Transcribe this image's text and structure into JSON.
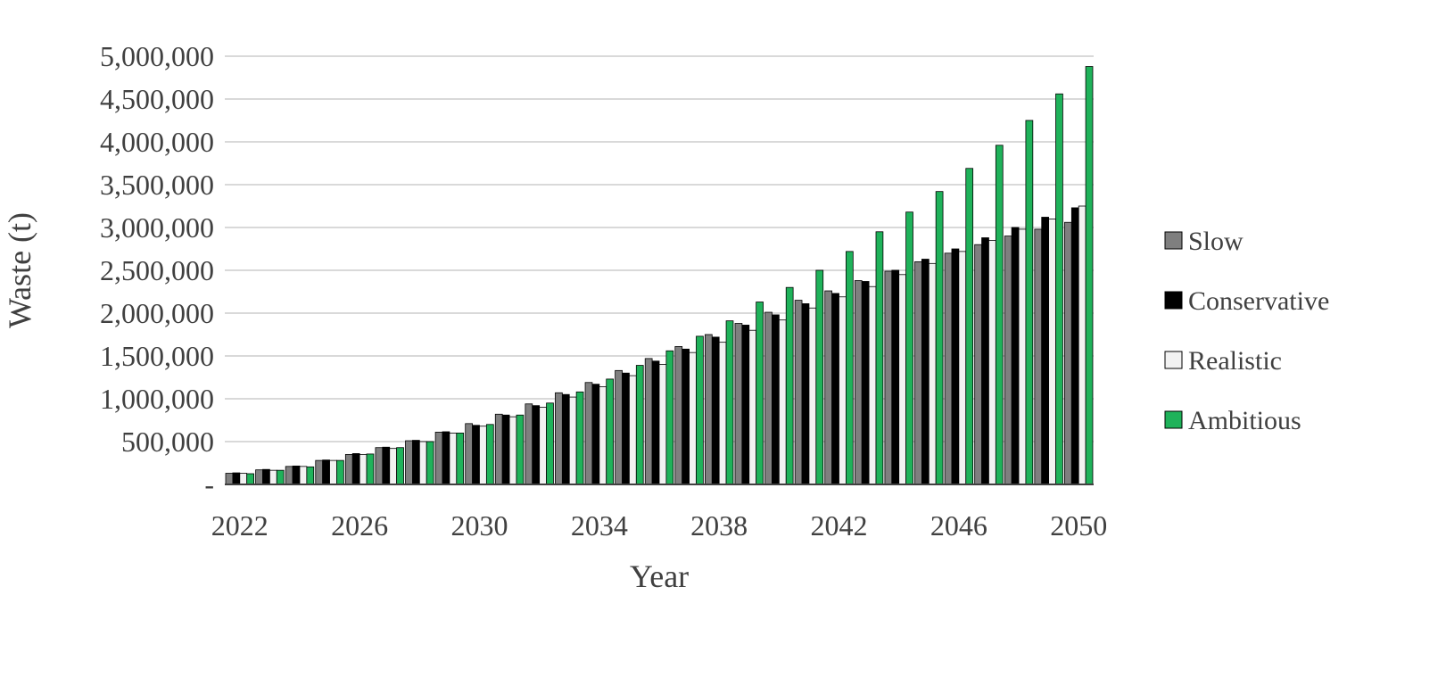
{
  "chart_data": {
    "type": "bar",
    "xlabel": "Year",
    "ylabel": "Waste (t)",
    "ylim": [
      0,
      5000000
    ],
    "yticks": [
      {
        "value": 0,
        "label": "-"
      },
      {
        "value": 500000,
        "label": "500,000"
      },
      {
        "value": 1000000,
        "label": "1,000,000"
      },
      {
        "value": 1500000,
        "label": "1,500,000"
      },
      {
        "value": 2000000,
        "label": "2,000,000"
      },
      {
        "value": 2500000,
        "label": "2,500,000"
      },
      {
        "value": 3000000,
        "label": "3,000,000"
      },
      {
        "value": 3500000,
        "label": "3,500,000"
      },
      {
        "value": 4000000,
        "label": "4,000,000"
      },
      {
        "value": 4500000,
        "label": "4,500,000"
      },
      {
        "value": 5000000,
        "label": "5,000,000"
      }
    ],
    "categories": [
      "2022",
      "2023",
      "2024",
      "2025",
      "2026",
      "2027",
      "2028",
      "2029",
      "2030",
      "2031",
      "2032",
      "2033",
      "2034",
      "2035",
      "2036",
      "2037",
      "2038",
      "2039",
      "2040",
      "2041",
      "2042",
      "2043",
      "2044",
      "2045",
      "2046",
      "2047",
      "2048",
      "2049",
      "2050"
    ],
    "xtick_labels": [
      "2022",
      "2026",
      "2030",
      "2034",
      "2038",
      "2042",
      "2046",
      "2050"
    ],
    "grid": true,
    "legend_position": "right",
    "series": [
      {
        "name": "Slow",
        "color": "#7f7f7f",
        "values": [
          130000,
          170000,
          210000,
          280000,
          350000,
          430000,
          510000,
          610000,
          710000,
          820000,
          940000,
          1070000,
          1190000,
          1330000,
          1470000,
          1610000,
          1750000,
          1880000,
          2010000,
          2150000,
          2260000,
          2380000,
          2490000,
          2600000,
          2700000,
          2800000,
          2900000,
          2980000,
          3060000
        ]
      },
      {
        "name": "Conservative",
        "color": "#000000",
        "values": [
          135000,
          175000,
          215000,
          285000,
          360000,
          435000,
          515000,
          615000,
          690000,
          810000,
          920000,
          1050000,
          1170000,
          1300000,
          1440000,
          1580000,
          1720000,
          1860000,
          1980000,
          2110000,
          2230000,
          2370000,
          2500000,
          2630000,
          2750000,
          2880000,
          3000000,
          3120000,
          3230000
        ]
      },
      {
        "name": "Realistic",
        "color": "#f2f2f2",
        "values": [
          130000,
          165000,
          210000,
          280000,
          350000,
          420000,
          500000,
          600000,
          680000,
          790000,
          900000,
          1020000,
          1140000,
          1270000,
          1400000,
          1540000,
          1660000,
          1800000,
          1920000,
          2060000,
          2190000,
          2310000,
          2450000,
          2580000,
          2720000,
          2850000,
          2980000,
          3100000,
          3250000
        ]
      },
      {
        "name": "Ambitious",
        "color": "#1fb25a",
        "values": [
          125000,
          165000,
          205000,
          280000,
          355000,
          430000,
          500000,
          600000,
          700000,
          810000,
          950000,
          1080000,
          1230000,
          1390000,
          1560000,
          1730000,
          1910000,
          2130000,
          2300000,
          2500000,
          2720000,
          2950000,
          3180000,
          3420000,
          3690000,
          3960000,
          4250000,
          4560000,
          4880000
        ]
      }
    ]
  }
}
